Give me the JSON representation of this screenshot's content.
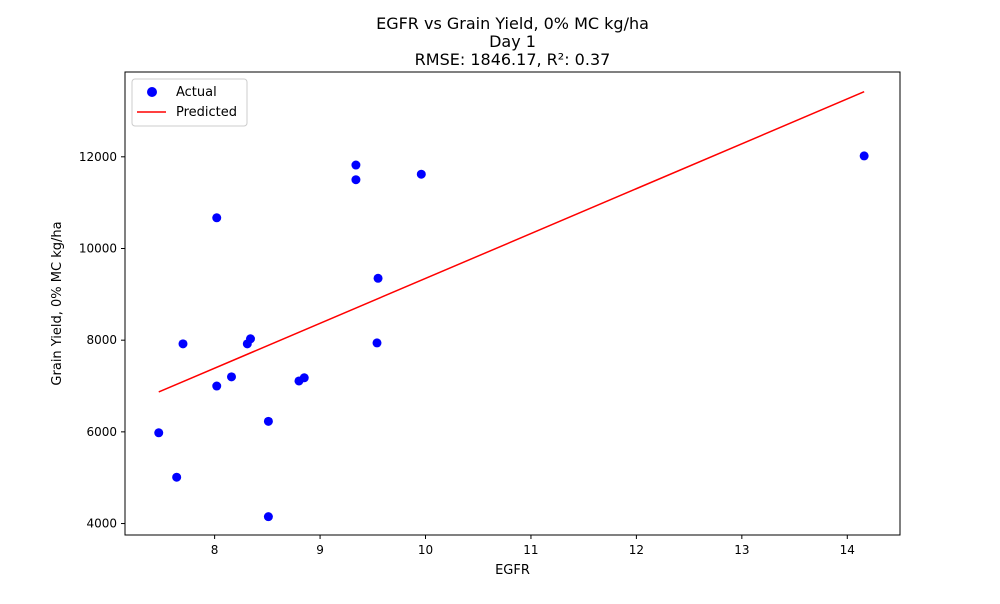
{
  "chart_data": {
    "type": "scatter",
    "title_lines": [
      "EGFR vs Grain Yield, 0% MC kg/ha",
      "Day 1",
      "RMSE: 1846.17, R²: 0.37"
    ],
    "xlabel": "EGFR",
    "ylabel": "Grain Yield, 0% MC kg/ha",
    "xlim": [
      7.15,
      14.5
    ],
    "ylim": [
      3750,
      13850
    ],
    "x_ticks": [
      8,
      9,
      10,
      11,
      12,
      13,
      14
    ],
    "y_ticks": [
      4000,
      6000,
      8000,
      10000,
      12000
    ],
    "grid": false,
    "legend_position": "top-left",
    "series": [
      {
        "name": "Actual",
        "kind": "scatter",
        "color": "#0000ff",
        "points": [
          {
            "x": 7.47,
            "y": 5980
          },
          {
            "x": 7.64,
            "y": 5010
          },
          {
            "x": 7.7,
            "y": 7920
          },
          {
            "x": 8.02,
            "y": 10670
          },
          {
            "x": 8.02,
            "y": 7000
          },
          {
            "x": 8.16,
            "y": 7200
          },
          {
            "x": 8.31,
            "y": 7920
          },
          {
            "x": 8.34,
            "y": 8030
          },
          {
            "x": 8.51,
            "y": 6230
          },
          {
            "x": 8.51,
            "y": 4150
          },
          {
            "x": 8.8,
            "y": 7110
          },
          {
            "x": 8.85,
            "y": 7180
          },
          {
            "x": 9.34,
            "y": 11820
          },
          {
            "x": 9.34,
            "y": 11500
          },
          {
            "x": 9.54,
            "y": 7940
          },
          {
            "x": 9.55,
            "y": 9350
          },
          {
            "x": 9.96,
            "y": 11620
          },
          {
            "x": 14.16,
            "y": 12020
          }
        ]
      },
      {
        "name": "Predicted",
        "kind": "line",
        "color": "#ff0000",
        "points": [
          {
            "x": 7.47,
            "y": 6870
          },
          {
            "x": 14.16,
            "y": 13420
          }
        ]
      }
    ]
  }
}
